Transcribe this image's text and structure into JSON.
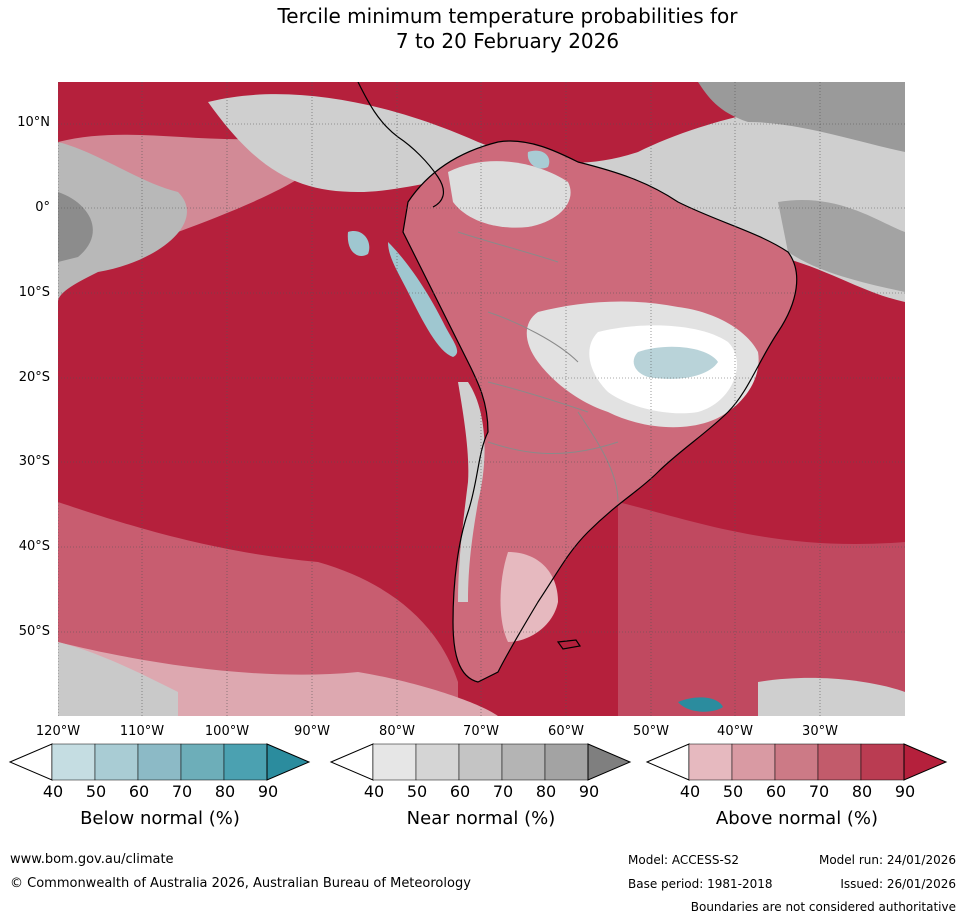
{
  "title": {
    "line1": "Tercile minimum temperature probabilities for",
    "line2": "7 to 20 February 2026"
  },
  "map": {
    "lat_labels": [
      "10°N",
      "0°",
      "10°S",
      "20°S",
      "30°S",
      "40°S",
      "50°S"
    ],
    "lon_labels": [
      "120°W",
      "110°W",
      "100°W",
      "90°W",
      "80°W",
      "70°W",
      "60°W",
      "50°W",
      "40°W",
      "30°W"
    ],
    "colors": {
      "ocean_above": "#b5203c",
      "land_above": "#cf6577",
      "near_normal": "#c9c9c9",
      "near_normal_dark": "#8c8c8c",
      "below": "#9fc7d0",
      "white": "#ffffff",
      "coast": "#000000",
      "border": "#8a8a8a",
      "grid": "#555555"
    }
  },
  "legends": [
    {
      "caption": "Below normal (%)",
      "ticks": [
        "40",
        "50",
        "60",
        "70",
        "80",
        "90"
      ],
      "colors": [
        "#ffffff",
        "#c5dde2",
        "#a9ccd4",
        "#8cbac6",
        "#6daeb9",
        "#4ba1b1",
        "#2b8c9e"
      ]
    },
    {
      "caption": "Near normal (%)",
      "ticks": [
        "40",
        "50",
        "60",
        "70",
        "80",
        "90"
      ],
      "colors": [
        "#ffffff",
        "#e6e6e6",
        "#d5d5d5",
        "#c4c4c4",
        "#b4b4b4",
        "#a3a3a3",
        "#7f7f7f"
      ]
    },
    {
      "caption": "Above normal (%)",
      "ticks": [
        "40",
        "50",
        "60",
        "70",
        "80",
        "90"
      ],
      "colors": [
        "#ffffff",
        "#e6b9bf",
        "#d99aa3",
        "#cc7a86",
        "#c25b6b",
        "#ba3c52",
        "#b5203c"
      ]
    }
  ],
  "footer": {
    "website": "www.bom.gov.au/climate",
    "copyright": "© Commonwealth of Australia 2026, Australian Bureau of Meteorology",
    "model": "Model: ACCESS-S2",
    "base_period": "Base period: 1981-2018",
    "model_run": "Model run: 24/01/2026",
    "issued": "Issued: 26/01/2026",
    "disclaimer": "Boundaries are not considered authoritative"
  }
}
